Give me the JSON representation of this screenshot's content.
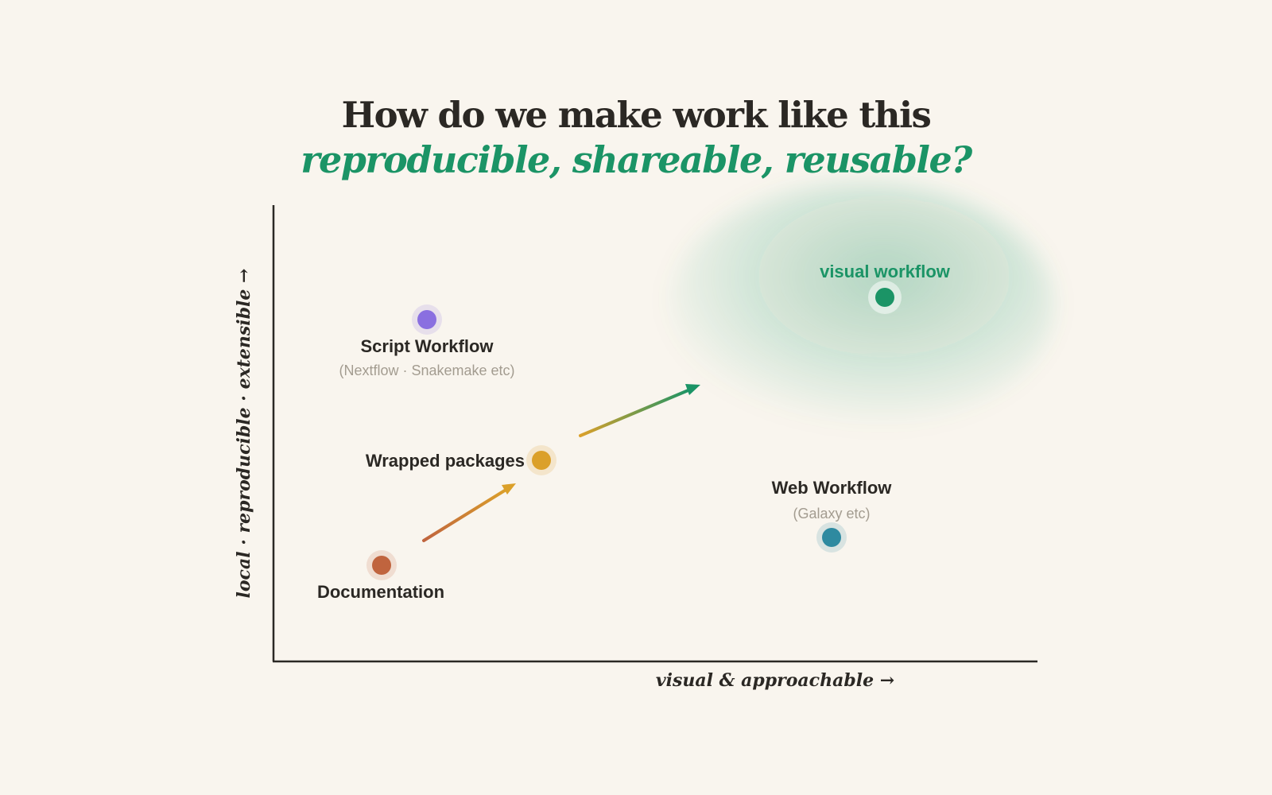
{
  "title": {
    "line1": "How do we make work like this",
    "line2": "reproducible, shareable, reusable?"
  },
  "axes": {
    "x_label": "visual & approachable →",
    "y_label": "local · reproducible · extensible →"
  },
  "nodes": {
    "script_workflow": {
      "label": "Script Workflow",
      "sublabel": "(Nextflow · Snakemake etc)",
      "color": "#8a6fe0"
    },
    "wrapped_packages": {
      "label": "Wrapped packages",
      "color": "#dba02a"
    },
    "documentation": {
      "label": "Documentation",
      "color": "#c0643e"
    },
    "web_workflow": {
      "label": "Web Workflow",
      "sublabel": "(Galaxy etc)",
      "color": "#2e8aa0"
    },
    "visual_workflow": {
      "label": "visual workflow",
      "color": "#1b9466"
    }
  },
  "colors": {
    "background": "#f9f5ee",
    "text": "#2b2824",
    "accent": "#1b9466",
    "muted": "#a39c90"
  }
}
